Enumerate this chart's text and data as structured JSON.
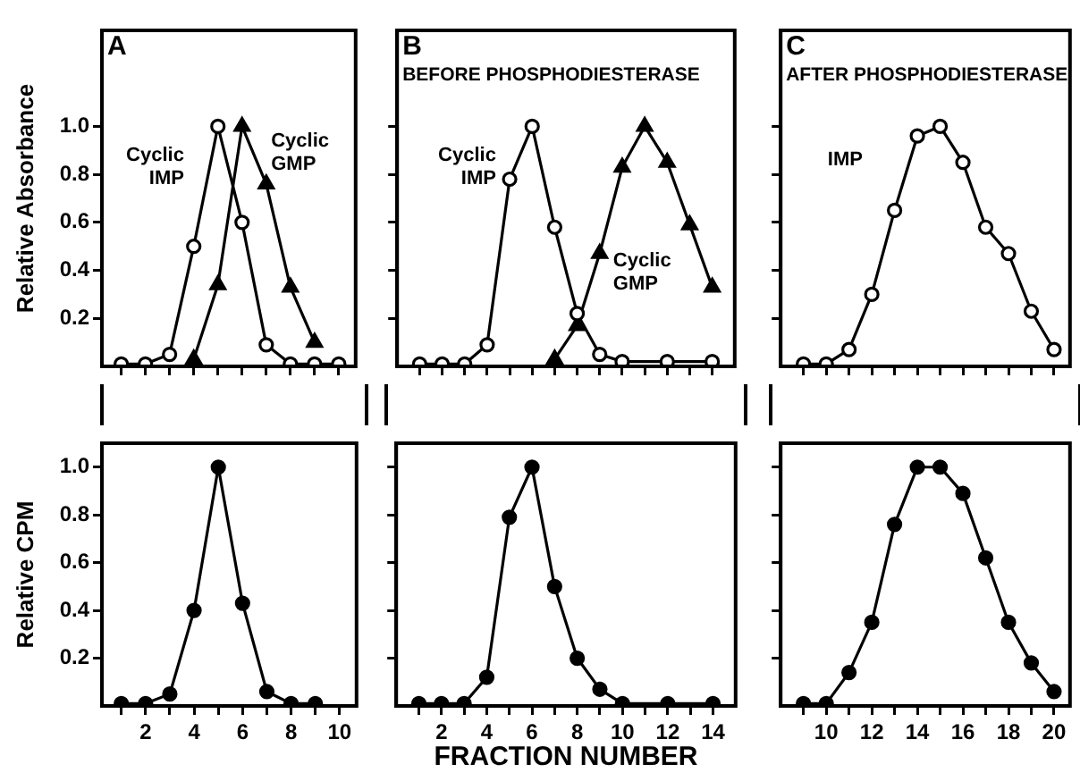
{
  "chart_data": [
    {
      "type": "line",
      "title": "A",
      "ylabel": "Relative Absorbance",
      "xlim": [
        0.2,
        10.7
      ],
      "xticks": [
        1,
        2,
        3,
        4,
        5,
        6,
        7,
        8,
        9,
        10
      ],
      "ylim": [
        0,
        1.4
      ],
      "yticks": [
        0.2,
        0.4,
        0.6,
        0.8,
        {
          "value": 1,
          "label": "1.0"
        }
      ],
      "tick_labels": "y",
      "grid": false,
      "legend": false,
      "series": [
        {
          "name": "Cyclic IMP",
          "color": "#000000",
          "marker": "circle",
          "x": [
            1,
            2,
            3,
            4,
            5,
            6,
            7,
            8,
            9,
            10
          ],
          "values": [
            0.01,
            0.01,
            0.05,
            0.5,
            1.0,
            0.6,
            0.09,
            0.01,
            0.01,
            0.01
          ]
        },
        {
          "name": "Cyclic GMP",
          "color": "#000000",
          "marker": "triangle",
          "x": [
            4,
            5,
            6,
            7,
            8,
            9
          ],
          "values": [
            0.03,
            0.34,
            1.0,
            0.76,
            0.33,
            0.1
          ]
        }
      ]
    },
    {
      "type": "line",
      "title": "B",
      "subtitle": "BEFORE PHOSPHODIESTERASE",
      "xlim": [
        0,
        15
      ],
      "xticks": [
        1,
        2,
        3,
        4,
        5,
        6,
        7,
        8,
        9,
        10,
        11,
        12,
        13,
        14
      ],
      "ylim": [
        0,
        1.4
      ],
      "yticks": [
        0.2,
        0.4,
        0.6,
        0.8,
        1
      ],
      "tick_labels": false,
      "grid": false,
      "legend": false,
      "series": [
        {
          "name": "Cyclic IMP",
          "color": "#000000",
          "marker": "circle",
          "x": [
            1,
            2,
            3,
            4,
            5,
            6,
            7,
            8,
            9,
            10,
            12,
            14
          ],
          "values": [
            0.01,
            0.01,
            0.01,
            0.09,
            0.78,
            1.0,
            0.58,
            0.22,
            0.05,
            0.02,
            0.02,
            0.02
          ]
        },
        {
          "name": "Cyclic GMP",
          "color": "#000000",
          "marker": "triangle",
          "x": [
            7,
            8,
            9,
            10,
            11,
            12,
            13,
            14
          ],
          "values": [
            0.03,
            0.17,
            0.47,
            0.83,
            1.0,
            0.85,
            0.59,
            0.33
          ]
        }
      ]
    },
    {
      "type": "line",
      "title": "C",
      "subtitle": "AFTER PHOSPHODIESTERASE",
      "xlim": [
        8,
        20.7
      ],
      "xticks": [
        9,
        10,
        11,
        12,
        13,
        14,
        15,
        16,
        17,
        18,
        19,
        20
      ],
      "ylim": [
        0,
        1.4
      ],
      "yticks": [
        0.2,
        0.4,
        0.6,
        0.8,
        1
      ],
      "tick_labels": false,
      "grid": false,
      "legend": false,
      "series": [
        {
          "name": "IMP",
          "color": "#000000",
          "marker": "circle",
          "x": [
            9,
            10,
            11,
            12,
            13,
            14,
            15,
            16,
            17,
            18,
            19,
            20
          ],
          "values": [
            0.01,
            0.01,
            0.07,
            0.3,
            0.65,
            0.96,
            1.0,
            0.85,
            0.58,
            0.47,
            0.23,
            0.07
          ]
        }
      ]
    },
    {
      "type": "line",
      "ylabel": "Relative CPM",
      "xlim": [
        0.2,
        10.7
      ],
      "xticks": [
        {
          "value": 1,
          "label": null
        },
        2,
        {
          "value": 3,
          "label": null
        },
        4,
        {
          "value": 5,
          "label": null
        },
        6,
        {
          "value": 7,
          "label": null
        },
        8,
        {
          "value": 9,
          "label": null
        },
        10
      ],
      "ylim": [
        0,
        1.1
      ],
      "yticks": [
        0.2,
        0.4,
        0.6,
        0.8,
        {
          "value": 1,
          "label": "1.0"
        }
      ],
      "grid": false,
      "legend": false,
      "series": [
        {
          "color": "#000000",
          "marker": "circle",
          "x": [
            1,
            2,
            3,
            4,
            5,
            6,
            7,
            8,
            9
          ],
          "values": [
            0.01,
            0.01,
            0.05,
            0.4,
            1.0,
            0.43,
            0.06,
            0.01,
            0.01
          ]
        }
      ]
    },
    {
      "type": "line",
      "xlabel": "FRACTION NUMBER",
      "xlim": [
        0,
        15
      ],
      "xticks": [
        {
          "value": 1,
          "label": null
        },
        2,
        {
          "value": 3,
          "label": null
        },
        4,
        {
          "value": 5,
          "label": null
        },
        6,
        {
          "value": 7,
          "label": null
        },
        8,
        {
          "value": 9,
          "label": null
        },
        10,
        {
          "value": 11,
          "label": null
        },
        12,
        {
          "value": 13,
          "label": null
        },
        14
      ],
      "ylim": [
        0,
        1.1
      ],
      "yticks": [
        0.2,
        0.4,
        0.6,
        0.8,
        1
      ],
      "tick_labels": "x",
      "grid": false,
      "legend": false,
      "series": [
        {
          "color": "#000000",
          "marker": "circle",
          "x": [
            1,
            2,
            3,
            4,
            5,
            6,
            7,
            8,
            9,
            10,
            12,
            14
          ],
          "values": [
            0.01,
            0.01,
            0.01,
            0.12,
            0.79,
            1.0,
            0.5,
            0.2,
            0.07,
            0.01,
            0.01,
            0.01
          ]
        }
      ]
    },
    {
      "type": "line",
      "xlim": [
        8,
        20.7
      ],
      "xticks": [
        {
          "value": 9,
          "label": null
        },
        10,
        {
          "value": 11,
          "label": null
        },
        12,
        {
          "value": 13,
          "label": null
        },
        14,
        {
          "value": 15,
          "label": null
        },
        16,
        {
          "value": 17,
          "label": null
        },
        18,
        {
          "value": 19,
          "label": null
        },
        20
      ],
      "ylim": [
        0,
        1.1
      ],
      "yticks": [
        0.2,
        0.4,
        0.6,
        0.8,
        1
      ],
      "tick_labels": "x",
      "grid": false,
      "legend": false,
      "series": [
        {
          "color": "#000000",
          "marker": "circle",
          "x": [
            9,
            10,
            11,
            12,
            13,
            14,
            15,
            16,
            17,
            18,
            19,
            20
          ],
          "values": [
            0.01,
            0.01,
            0.14,
            0.35,
            0.76,
            1.0,
            1.0,
            0.89,
            0.62,
            0.35,
            0.18,
            0.06
          ]
        }
      ]
    }
  ]
}
